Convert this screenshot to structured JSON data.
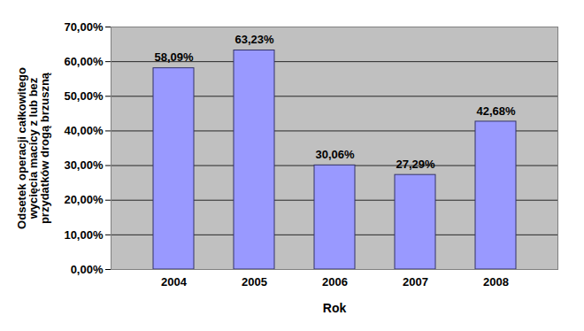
{
  "chart_data": {
    "type": "bar",
    "x_label": "Rok",
    "y_label": "Odsetek operacji całkowitego wycięcia macicy z lub bez przydatków drogą brzuszną",
    "categories": [
      "2004",
      "2005",
      "2006",
      "2007",
      "2008"
    ],
    "values": [
      58.09,
      63.23,
      30.06,
      27.29,
      42.68
    ],
    "value_labels": [
      "58,09%",
      "63,23%",
      "30,06%",
      "27,29%",
      "42,68%"
    ],
    "data_labels": true,
    "color": "#9999ff",
    "ylim": [
      0,
      70
    ],
    "yticks": [
      {
        "value": 0,
        "label": "0,00%"
      },
      {
        "value": 10,
        "label": "10,00%"
      },
      {
        "value": 20,
        "label": "20,00%"
      },
      {
        "value": 30,
        "label": "30,00%"
      },
      {
        "value": 40,
        "label": "40,00%"
      },
      {
        "value": 50,
        "label": "50,00%"
      },
      {
        "value": 60,
        "label": "60,00%"
      },
      {
        "value": 70,
        "label": "70,00%"
      }
    ],
    "grid": true
  }
}
